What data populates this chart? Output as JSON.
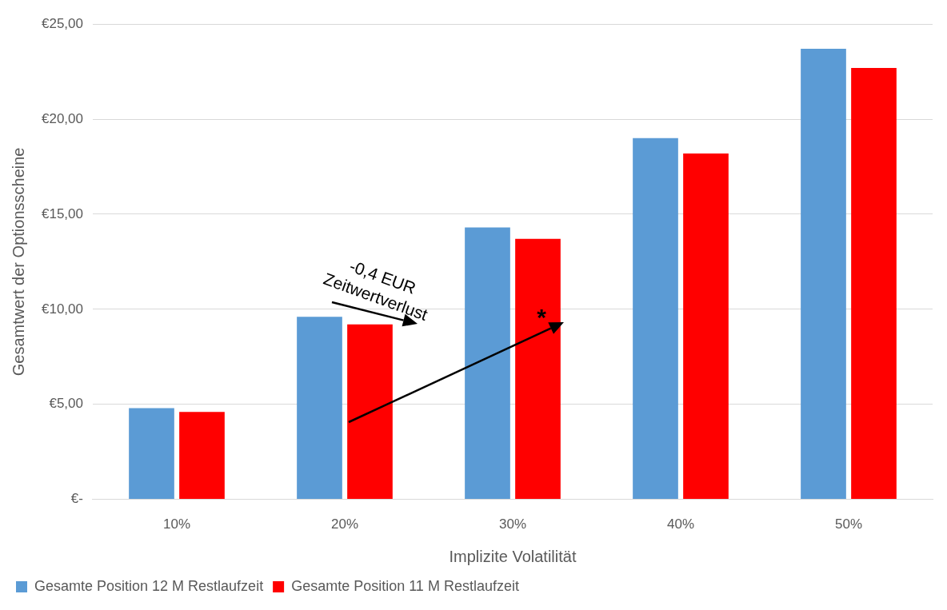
{
  "chart_data": {
    "type": "bar",
    "xlabel": "Implizite Volatilität",
    "ylabel": "Gesamtwert der Optionsscheine",
    "categories": [
      "10%",
      "20%",
      "30%",
      "40%",
      "50%"
    ],
    "series": [
      {
        "name": "Gesamte Position 12 M Restlaufzeit",
        "color": "#5b9bd5",
        "values": [
          4.8,
          9.6,
          14.3,
          19.0,
          23.7
        ]
      },
      {
        "name": "Gesamte Position 11 M Restlaufzeit",
        "color": "#ff0000",
        "values": [
          4.6,
          9.2,
          13.7,
          18.2,
          22.7
        ]
      }
    ],
    "ylim": [
      0,
      25
    ],
    "yticks": [
      {
        "value": 0,
        "label": "€-"
      },
      {
        "value": 5,
        "label": "€5,00"
      },
      {
        "value": 10,
        "label": "€10,00"
      },
      {
        "value": 15,
        "label": "€15,00"
      },
      {
        "value": 20,
        "label": "€20,00"
      },
      {
        "value": 25,
        "label": "€25,00"
      }
    ],
    "grid": "y",
    "legend": "bottom",
    "annotations": [
      "-0,4 EUR\nZeitwertverlust",
      {
        "text": "*",
        "x": "30%",
        "y": 9.6
      }
    ]
  }
}
